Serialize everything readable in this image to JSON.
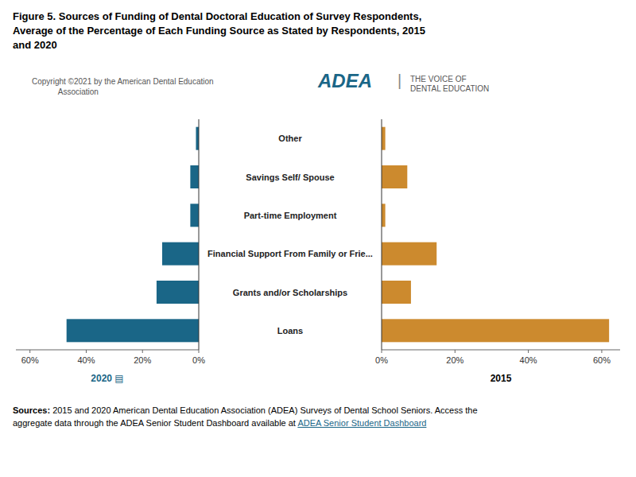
{
  "chart_data": [
    {
      "type": "bar",
      "orientation": "horizontal",
      "title": "Figure 5. Sources of Funding of Dental Doctoral Education of Survey Respondents,\nAverage of the Percentage of Each Funding Source as Stated by Respondents, 2015\nand 2020",
      "annotations": [
        "Copyright ©2021 by the American Dental Education\n            Association",
        "ADEA",
        "|",
        "THE VOICE OF\nDENTAL EDUCATION",
        "Sources:",
        " 2015 and 2020 American Dental Education Association (ADEA) Surveys of Dental School Seniors. Access the\naggregate data through the ADEA Senior Student Dashboard available at ",
        "ADEA Senior Student Dashboard"
      ],
      "categories": [
        null,
        null,
        null,
        null,
        null,
        null
      ],
      "values": [
        47,
        15,
        13,
        3,
        3,
        1
      ],
      "color": "#1a6687",
      "x_label": "2020 ▤",
      "xlim": [
        65,
        0
      ],
      "xticks": [
        {
          "value": 60,
          "label": "60%"
        },
        {
          "value": 40,
          "label": "40%"
        },
        {
          "value": 20,
          "label": "20%"
        },
        {
          "value": 0,
          "label": "0%"
        }
      ],
      "grid": false
    },
    {
      "type": "bar",
      "orientation": "horizontal",
      "categories": [
        "Loans",
        "Grants and/or Scholarships",
        "Financial Support From Family or Frie...",
        "Part-time Employment",
        "Savings  Self/ Spouse",
        "Other"
      ],
      "values": [
        62,
        8,
        15,
        1,
        7,
        1
      ],
      "color": "#cc8a2e",
      "x_label": "2015",
      "xlim": [
        0,
        65
      ],
      "xticks": [
        {
          "value": 0,
          "label": "0%"
        },
        {
          "value": 20,
          "label": "20%"
        },
        {
          "value": 40,
          "label": "40%"
        },
        {
          "value": 60,
          "label": "60%"
        }
      ],
      "grid": false
    }
  ]
}
